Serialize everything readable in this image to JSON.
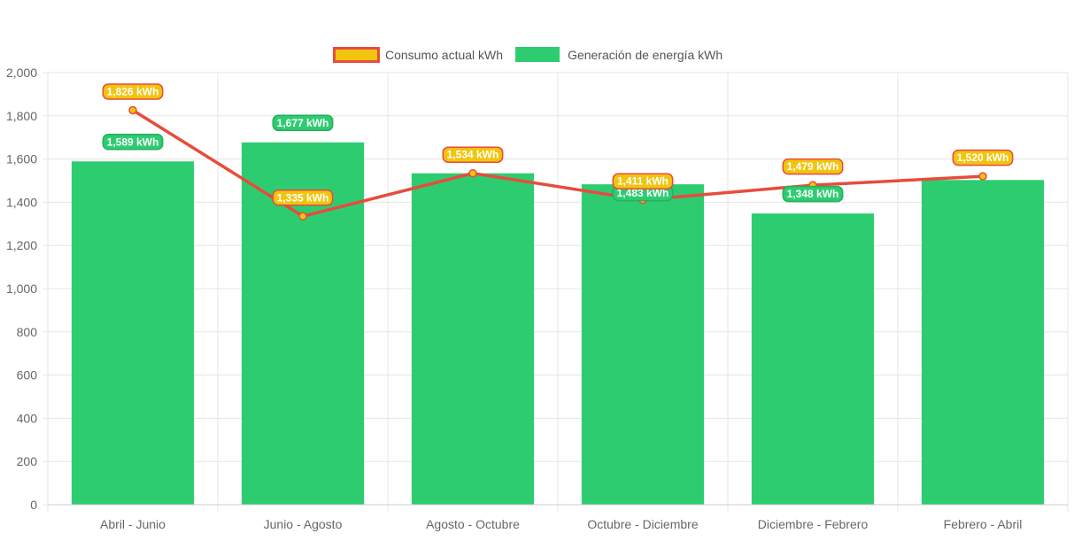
{
  "chart_data": {
    "type": "bar",
    "categories": [
      "Abril - Junio",
      "Junio - Agosto",
      "Agosto - Octubre",
      "Octubre - Diciembre",
      "Diciembre - Febrero",
      "Febrero - Abril"
    ],
    "series": [
      {
        "name": "Generación de energía kWh",
        "type": "bar",
        "values": [
          1589,
          1677,
          1534,
          1483,
          1348,
          1503
        ],
        "labels": [
          "1,589 kWh",
          "1,677 kWh",
          "",
          "1,483 kWh",
          "1,348 kWh",
          ""
        ],
        "color": "#2ecc71"
      },
      {
        "name": "Consumo actual kWh",
        "type": "line",
        "values": [
          1826,
          1335,
          1534,
          1411,
          1479,
          1520
        ],
        "labels": [
          "1,826 kWh",
          "1,335 kWh",
          "1,534 kWh",
          "1,411 kWh",
          "1,479 kWh",
          "1,520 kWh"
        ],
        "color": "#e74c3c",
        "fill": "#f1c40f"
      }
    ],
    "ylim": [
      0,
      2000
    ],
    "yticks": [
      0,
      200,
      400,
      600,
      800,
      1000,
      1200,
      1400,
      1600,
      1800,
      2000
    ],
    "ytick_labels": [
      "0",
      "200",
      "400",
      "600",
      "800",
      "1,000",
      "1,200",
      "1,400",
      "1,600",
      "1,800",
      "2,000"
    ],
    "grid": true,
    "legend_position": "top"
  }
}
